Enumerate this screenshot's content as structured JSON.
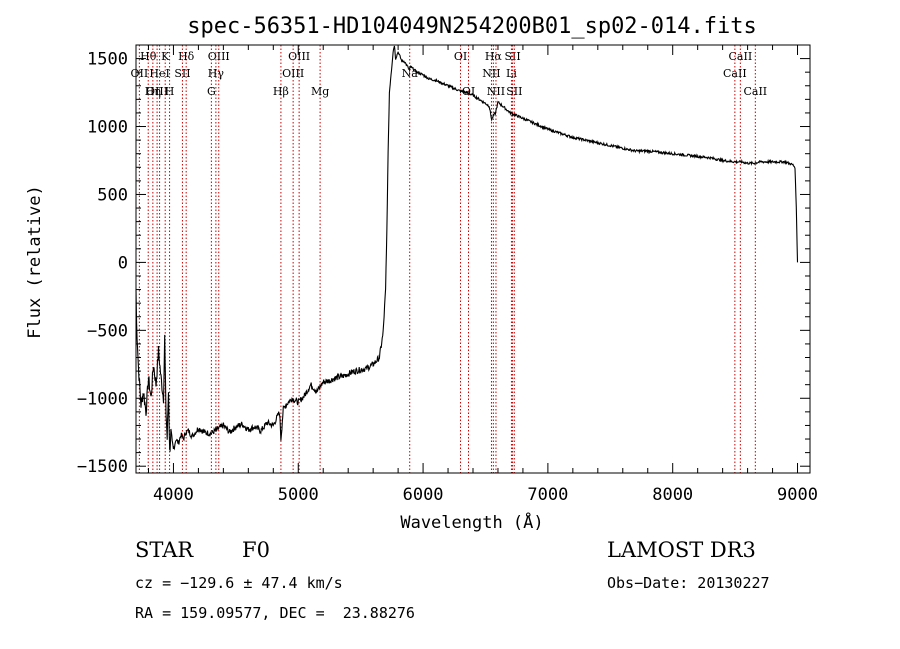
{
  "chart_data": {
    "type": "line",
    "title": "spec-56351-HD104049N254200B01_sp02-014.fits",
    "xlabel": "Wavelength (Å)",
    "ylabel": "Flux (relative)",
    "xlim": [
      3700,
      9100
    ],
    "ylim": [
      -1550,
      1600
    ],
    "xticks": [
      4000,
      5000,
      6000,
      7000,
      8000,
      9000
    ],
    "yticks": [
      -1500,
      -1000,
      -500,
      0,
      500,
      1000,
      1500
    ],
    "series": [
      {
        "name": "flux",
        "x": [
          3700,
          3705,
          3720,
          3740,
          3760,
          3780,
          3800,
          3820,
          3840,
          3860,
          3880,
          3900,
          3920,
          3930,
          3940,
          3950,
          3960,
          3970,
          3980,
          3990,
          4000,
          4020,
          4040,
          4060,
          4080,
          4100,
          4120,
          4150,
          4200,
          4250,
          4300,
          4350,
          4400,
          4450,
          4500,
          4550,
          4600,
          4650,
          4700,
          4750,
          4800,
          4850,
          4861,
          4880,
          4900,
          4950,
          5000,
          5050,
          5100,
          5150,
          5200,
          5250,
          5300,
          5350,
          5400,
          5450,
          5500,
          5550,
          5600,
          5650,
          5680,
          5700,
          5710,
          5720,
          5730,
          5740,
          5750,
          5760,
          5770,
          5780,
          5800,
          5830,
          5850,
          5890,
          5900,
          5950,
          6000,
          6050,
          6100,
          6150,
          6200,
          6250,
          6300,
          6350,
          6400,
          6450,
          6500,
          6530,
          6550,
          6563,
          6580,
          6600,
          6650,
          6700,
          6750,
          6800,
          6900,
          7000,
          7100,
          7200,
          7300,
          7400,
          7500,
          7600,
          7700,
          7800,
          7900,
          8000,
          8100,
          8200,
          8300,
          8400,
          8500,
          8550,
          8600,
          8650,
          8700,
          8800,
          8900,
          8960,
          8980,
          8990,
          9000
        ],
        "y": [
          -200,
          -450,
          -780,
          -1050,
          -950,
          -1100,
          -850,
          -1000,
          -750,
          -900,
          -650,
          -850,
          -1000,
          -550,
          -1100,
          -1300,
          -950,
          -1400,
          -1250,
          -1350,
          -1380,
          -1300,
          -1330,
          -1270,
          -1300,
          -1250,
          -1240,
          -1280,
          -1220,
          -1250,
          -1260,
          -1230,
          -1200,
          -1250,
          -1210,
          -1190,
          -1230,
          -1210,
          -1240,
          -1180,
          -1200,
          -1100,
          -1300,
          -1080,
          -1050,
          -1000,
          -1030,
          -980,
          -900,
          -950,
          -880,
          -870,
          -850,
          -840,
          -820,
          -800,
          -790,
          -780,
          -750,
          -700,
          -520,
          -200,
          250,
          800,
          1250,
          1350,
          1450,
          1550,
          1600,
          1500,
          1550,
          1480,
          1480,
          1420,
          1440,
          1400,
          1380,
          1350,
          1340,
          1320,
          1300,
          1280,
          1260,
          1250,
          1230,
          1200,
          1170,
          1150,
          1050,
          1080,
          1100,
          1180,
          1140,
          1100,
          1080,
          1060,
          1020,
          980,
          950,
          920,
          900,
          880,
          860,
          840,
          820,
          820,
          810,
          800,
          790,
          780,
          770,
          750,
          740,
          740,
          730,
          730,
          740,
          740,
          740,
          720,
          700,
          400,
          0
        ]
      }
    ],
    "spectral_lines": [
      {
        "name": "Hθ",
        "wl": 3798,
        "row": 0
      },
      {
        "name": "OII",
        "wl": 3727,
        "row": 1
      },
      {
        "name": "OIII",
        "wl": 3869,
        "row": 2
      },
      {
        "name": "K",
        "wl": 3934,
        "row": 0
      },
      {
        "name": "HeI",
        "wl": 3889,
        "row": 1
      },
      {
        "name": "Hη",
        "wl": 3835,
        "row": 2
      },
      {
        "name": "Hδ",
        "wl": 4102,
        "row": 0
      },
      {
        "name": "SII",
        "wl": 4072,
        "row": 1
      },
      {
        "name": "H",
        "wl": 3969,
        "row": 2
      },
      {
        "name": "OIII",
        "wl": 4363,
        "row": 0
      },
      {
        "name": "Hγ",
        "wl": 4340,
        "row": 1
      },
      {
        "name": "G",
        "wl": 4304,
        "row": 2
      },
      {
        "name": "OIII",
        "wl": 5007,
        "row": 0
      },
      {
        "name": "OIII",
        "wl": 4959,
        "row": 1
      },
      {
        "name": "Hβ",
        "wl": 4861,
        "row": 2
      },
      {
        "name": "Mg",
        "wl": 5175,
        "row": 2
      },
      {
        "name": "Na",
        "wl": 5893,
        "row": 1
      },
      {
        "name": "OI",
        "wl": 6300,
        "row": 0
      },
      {
        "name": "OI",
        "wl": 6364,
        "row": 2
      },
      {
        "name": "Hα",
        "wl": 6563,
        "row": 0
      },
      {
        "name": "SII",
        "wl": 6717,
        "row": 0
      },
      {
        "name": "NII",
        "wl": 6548,
        "row": 1
      },
      {
        "name": "Li",
        "wl": 6708,
        "row": 1
      },
      {
        "name": "NII",
        "wl": 6584,
        "row": 2
      },
      {
        "name": "SII",
        "wl": 6731,
        "row": 2
      },
      {
        "name": "CaII",
        "wl": 8542,
        "row": 0
      },
      {
        "name": "CaII",
        "wl": 8498,
        "row": 1
      },
      {
        "name": "CaII",
        "wl": 8662,
        "row": 2
      }
    ]
  },
  "info": {
    "class": "STAR",
    "subclass": "F0",
    "survey": "LAMOST DR3",
    "cz": "cz = −129.6 ± 47.4 km/s",
    "obs_date": "Obs−Date: 20130227",
    "radec": "RA = 159.09577, DEC =  23.88276"
  },
  "colors": {
    "line_marker": "#cc0000",
    "spectrum": "#000000",
    "axes": "#000000"
  }
}
